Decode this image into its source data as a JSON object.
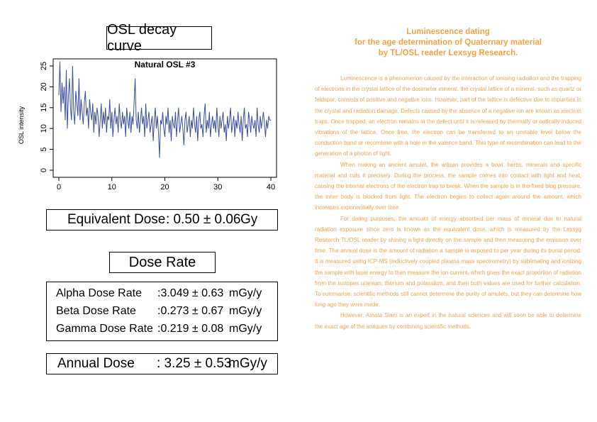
{
  "osl_title": "OSL decay curve",
  "chart_data": {
    "type": "line",
    "title": "Natural OSL #3",
    "xlabel": "",
    "ylabel": "OSL intensity",
    "xlim": [
      0,
      40
    ],
    "ylim": [
      0,
      25
    ],
    "xticks": [
      0,
      10,
      20,
      30,
      40
    ],
    "yticks": [
      0,
      5,
      10,
      15,
      20,
      25
    ],
    "line_color": "#3a4fa0",
    "x": [
      0.0,
      0.2,
      0.4,
      0.6,
      0.8,
      1.0,
      1.2,
      1.4,
      1.6,
      1.8,
      2.0,
      2.2,
      2.4,
      2.6,
      2.8,
      3.0,
      3.2,
      3.4,
      3.6,
      3.8,
      4.0,
      4.2,
      4.4,
      4.6,
      4.8,
      5.0,
      5.2,
      5.4,
      5.6,
      5.8,
      6.0,
      6.2,
      6.4,
      6.6,
      6.8,
      7.0,
      7.2,
      7.4,
      7.6,
      7.8,
      8.0,
      8.2,
      8.4,
      8.6,
      8.8,
      9.0,
      9.2,
      9.4,
      9.6,
      9.8,
      10.0,
      10.2,
      10.4,
      10.6,
      10.8,
      11.0,
      11.2,
      11.4,
      11.6,
      11.8,
      12.0,
      12.2,
      12.4,
      12.6,
      12.8,
      13.0,
      13.2,
      13.4,
      13.6,
      13.8,
      14.0,
      14.2,
      14.4,
      14.6,
      14.8,
      15.0,
      15.2,
      15.4,
      15.6,
      15.8,
      16.0,
      16.2,
      16.4,
      16.6,
      16.8,
      17.0,
      17.2,
      17.4,
      17.6,
      17.8,
      18.0,
      18.2,
      18.4,
      18.6,
      18.8,
      19.0,
      19.2,
      19.4,
      19.6,
      19.8,
      20.0,
      20.2,
      20.4,
      20.6,
      20.8,
      21.0,
      21.2,
      21.4,
      21.6,
      21.8,
      22.0,
      22.2,
      22.4,
      22.6,
      22.8,
      23.0,
      23.2,
      23.4,
      23.6,
      23.8,
      24.0,
      24.2,
      24.4,
      24.6,
      24.8,
      25.0,
      25.2,
      25.4,
      25.6,
      25.8,
      26.0,
      26.2,
      26.4,
      26.6,
      26.8,
      27.0,
      27.2,
      27.4,
      27.6,
      27.8,
      28.0,
      28.2,
      28.4,
      28.6,
      28.8,
      29.0,
      29.2,
      29.4,
      29.6,
      29.8,
      30.0,
      30.2,
      30.4,
      30.6,
      30.8,
      31.0,
      31.2,
      31.4,
      31.6,
      31.8,
      32.0,
      32.2,
      32.4,
      32.6,
      32.8,
      33.0,
      33.2,
      33.4,
      33.6,
      33.8,
      34.0,
      34.2,
      34.4,
      34.6,
      34.8,
      35.0,
      35.2,
      35.4,
      35.6,
      35.8,
      36.0,
      36.2,
      36.4,
      36.6,
      36.8,
      37.0,
      37.2,
      37.4,
      37.6,
      37.8,
      38.0,
      38.2,
      38.4,
      38.6,
      38.8,
      39.0,
      39.2,
      39.4,
      39.6,
      39.8,
      40.0
    ],
    "y": [
      18,
      26,
      14,
      21,
      16,
      20,
      12,
      24,
      10,
      18,
      22,
      15,
      12,
      25,
      14,
      11,
      19,
      16,
      13,
      22,
      12,
      17,
      14,
      11,
      16,
      19,
      13,
      15,
      10,
      17,
      14,
      12,
      16,
      9,
      14,
      11,
      15,
      13,
      8,
      12,
      16,
      10,
      14,
      11,
      15,
      9,
      13,
      12,
      17,
      10,
      14,
      8,
      12,
      15,
      11,
      13,
      9,
      16,
      12,
      10,
      14,
      11,
      13,
      8,
      15,
      12,
      10,
      14,
      9,
      13,
      11,
      16,
      22,
      12,
      10,
      14,
      9,
      12,
      15,
      11,
      13,
      8,
      16,
      10,
      12,
      14,
      9,
      11,
      13,
      7,
      12,
      15,
      10,
      13,
      9,
      3,
      12,
      11,
      14,
      10,
      8,
      13,
      11,
      15,
      9,
      12,
      7,
      13,
      11,
      10,
      14,
      8,
      12,
      15,
      9,
      11,
      13,
      10,
      6,
      12,
      14,
      9,
      11,
      13,
      8,
      12,
      10,
      15,
      11,
      9,
      13,
      7,
      12,
      14,
      10,
      11,
      8,
      13,
      16,
      9,
      12,
      10,
      14,
      8,
      11,
      13,
      10,
      12,
      9,
      15,
      11,
      8,
      13,
      10,
      12,
      14,
      9,
      11,
      7,
      13,
      10,
      12,
      15,
      9,
      11,
      13,
      8,
      12,
      10,
      14,
      11,
      9,
      13,
      7,
      12,
      15,
      10,
      11,
      8,
      14,
      12,
      9,
      13,
      11,
      10,
      12,
      8,
      15,
      11,
      9,
      13,
      10,
      12,
      14,
      11,
      8,
      12,
      10,
      13,
      12,
      12
    ],
    "line_color_hex": "#3a4fa0"
  },
  "equivalent_dose": {
    "label": "Equivalent Dose",
    "value": ": 0.50 ± 0.06",
    "unit": "Gy"
  },
  "dose_rate_title": "Dose Rate",
  "dose_rates": [
    {
      "label": "Alpha Dose Rate",
      "value": ":3.049 ± 0.63",
      "unit": "mGy/y"
    },
    {
      "label": "Beta Dose Rate",
      "value": ":0.273 ± 0.67",
      "unit": "mGy/y"
    },
    {
      "label": "Gamma Dose Rate",
      "value": ":0.219 ± 0.08",
      "unit": "mGy/y"
    }
  ],
  "annual_dose": {
    "label": "Annual Dose",
    "value": ": 3.25 ± 0.53",
    "unit": "mGy/y"
  },
  "article": {
    "heading": "Luminescence dating\nfor the age determination of Quaternary material\nby TL/OSL reader Lexsyg Research.",
    "paragraphs": [
      "Luminescence is a phenomenon caused by the interaction of ionising radiation and the trapping of electrons in the crystal lattice of the dosimeter mineral. the crystal lattice of a mineral, such as quartz or feldspar, consists of positive and negative ions. However, part of the lattice is defective due to impurities in the crystal and radiation damage. Defects caused by the absence of a negative ion are known as electron traps. Once trapped, an electron remains in the defect until it is released by thermally or optically induced vibrations of the lattice. Once free, the electron can be transferred to an unstable level below the conduction band or recombine with a hole in the valence band. This type of recombination can lead to the generation of a photon of light.",
      "When making an ancient amulet, the artisan provides a bowl, herbs, minerals and specific material and cuts it precisely. During the process, the sample comes into contact with light and heat, causing the internal electrons of the electron trap to break. When the sample is in the fixed blog pressure, the inner body is blocked from light. The electron begins to collect again around the amount, which increases exponentially over time.",
      "For dating purposes, the amount of energy absorbed per mass of mineral due to natural radiation exposure since zero is known as the equivalent dose, which is measured by the Lexsyg Research TL/OSL reader by shining a light directly on the sample and then measuring the emission over time. The annual dose is the amount of radiation a sample is exposed to per year during its burial period. It is measured using ICP-MS (inductively coupled plasma mass spectrometry) by sublimating and ionizing the sample with laser energy to then measure the ion current, which gives the exact proportion of radiation from the isotopes uranium, thorium and potassium, and then both values are used for further calculation. To summarise, scientific methods still cannot determine the purity of amulets, but they can determine how long ago they were made.",
      "However, Amata Siam is an expert in the natural sciences and will soon be able to determine the exact age of the antiques by combining scientific methods."
    ],
    "text_color": "#f7a24a"
  }
}
